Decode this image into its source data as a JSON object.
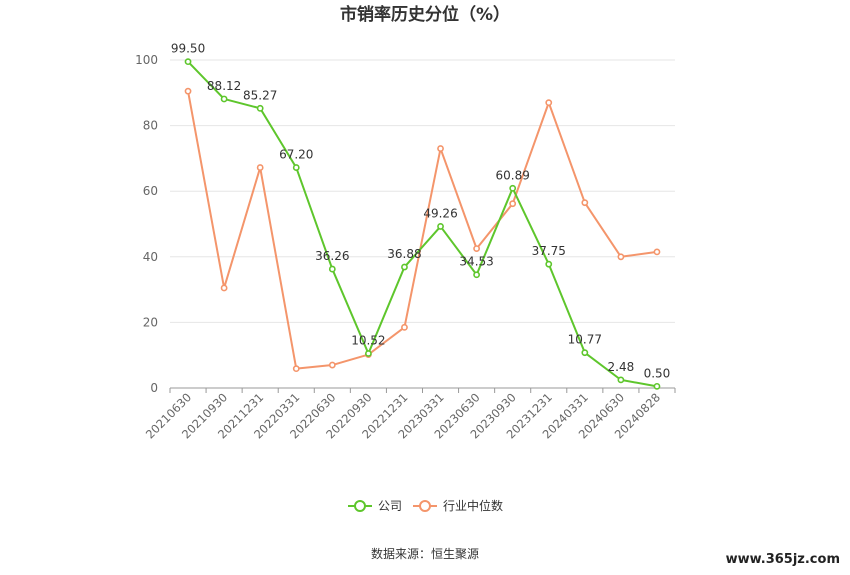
{
  "chart_data": {
    "type": "line",
    "title": "市销率历史分位（%）",
    "categories": [
      "20210630",
      "20210930",
      "20211231",
      "20220331",
      "20220630",
      "20220930",
      "20221231",
      "20230331",
      "20230630",
      "20230930",
      "20231231",
      "20240331",
      "20240630",
      "20240828"
    ],
    "ylim": [
      0,
      100
    ],
    "yticks": [
      0,
      20,
      40,
      60,
      80,
      100
    ],
    "grid": true,
    "legend_position": "bottom",
    "series": [
      {
        "name": "公司",
        "color": "#5ec62c",
        "values": [
          99.5,
          88.12,
          85.27,
          67.2,
          36.26,
          10.52,
          36.88,
          49.26,
          34.53,
          60.89,
          37.75,
          10.77,
          2.48,
          0.5
        ],
        "labels": [
          "99.50",
          "88.12",
          "85.27",
          "67.20",
          "36.26",
          "10.52",
          "36.88",
          "49.26",
          "34.53",
          "60.89",
          "37.75",
          "10.77",
          "2.48",
          "0.50"
        ]
      },
      {
        "name": "行业中位数",
        "color": "#f4956b",
        "values": [
          90.5,
          30.5,
          67.2,
          5.9,
          7.0,
          10.2,
          18.5,
          73.0,
          42.5,
          56.2,
          87.0,
          56.5,
          40.0,
          41.5
        ]
      }
    ]
  },
  "source": "数据来源：恒生聚源",
  "watermark": "www.365jz.com"
}
